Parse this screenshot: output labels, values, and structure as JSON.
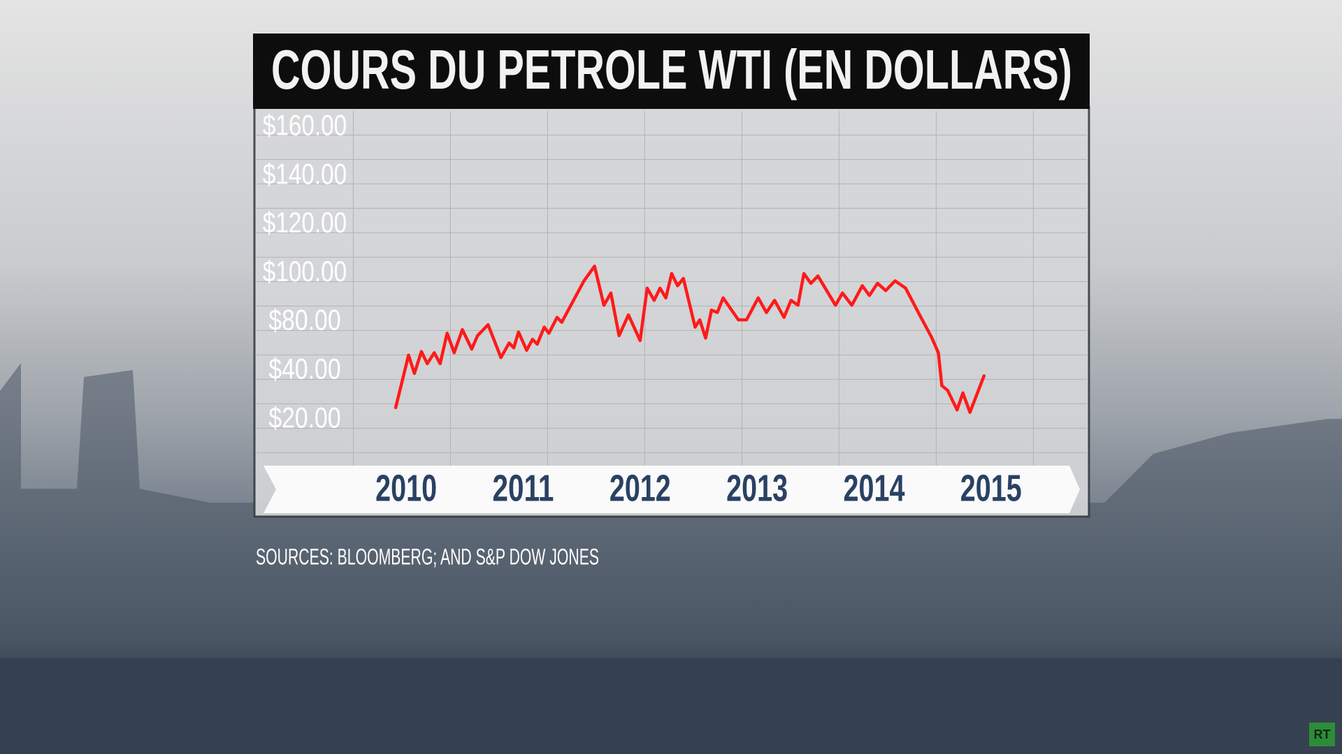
{
  "chart_data": {
    "type": "line",
    "title": "COURS DU PETROLE WTI (EN DOLLARS)",
    "source": "SOURCES: BLOOMBERG; AND S&P DOW JONES",
    "color": "#ff1a1a",
    "x": [
      2009.91,
      2010.02,
      2010.07,
      2010.13,
      2010.18,
      2010.24,
      2010.29,
      2010.35,
      2010.41,
      2010.48,
      2010.56,
      2010.61,
      2010.7,
      2010.81,
      2010.88,
      2010.92,
      2010.96,
      2011.03,
      2011.08,
      2011.12,
      2011.18,
      2011.22,
      2011.29,
      2011.33,
      2011.52,
      2011.61,
      2011.69,
      2011.75,
      2011.82,
      2011.9,
      2012.0,
      2012.06,
      2012.12,
      2012.17,
      2012.22,
      2012.27,
      2012.32,
      2012.37,
      2012.47,
      2012.51,
      2012.56,
      2012.61,
      2012.66,
      2012.71,
      2012.84,
      2012.91,
      2013.01,
      2013.08,
      2013.15,
      2013.23,
      2013.29,
      2013.35,
      2013.4,
      2013.46,
      2013.52,
      2013.67,
      2013.73,
      2013.81,
      2013.9,
      2013.96,
      2014.03,
      2014.1,
      2014.18,
      2014.27,
      2014.39,
      2014.49,
      2014.55,
      2014.58,
      2014.63,
      2014.71,
      2014.76,
      2014.82,
      2014.94
    ],
    "values": [
      25,
      53,
      39,
      56,
      46,
      55,
      46,
      71,
      55,
      74,
      58,
      69,
      78,
      51,
      63,
      59,
      72,
      57,
      66,
      62,
      76,
      71,
      82,
      80,
      97,
      103,
      87,
      92,
      69,
      83,
      65,
      94,
      89,
      94,
      90,
      100,
      95,
      98,
      76,
      81,
      67,
      85,
      84,
      90,
      81,
      81,
      90,
      84,
      89,
      82,
      89,
      87,
      100,
      96,
      99,
      87,
      92,
      87,
      95,
      91,
      96,
      93,
      97,
      94,
      83,
      68,
      55,
      34,
      32,
      24,
      31,
      23,
      38
    ],
    "xlim": [
      2008.72,
      2015.82
    ],
    "xticks": [
      2010,
      2011,
      2012,
      2013,
      2014,
      2015
    ],
    "ylim": [
      0,
      167
    ],
    "yticks": [
      {
        "value": 20,
        "label": "$20.00"
      },
      {
        "value": 40,
        "label": "$40.00"
      },
      {
        "value": 80,
        "label": "$80.00"
      },
      {
        "value": 100,
        "label": "$100.00"
      },
      {
        "value": 120,
        "label": "$120.00"
      },
      {
        "value": 140,
        "label": "$140.00"
      },
      {
        "value": 160,
        "label": "$160.00"
      }
    ]
  },
  "logo": "RT"
}
